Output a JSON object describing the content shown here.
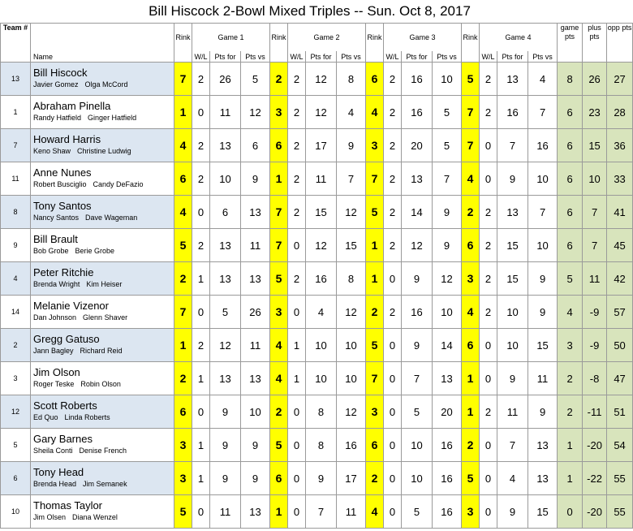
{
  "title": "Bill Hiscock 2-Bowl Mixed Triples   --  Sun.  Oct 8, 2017",
  "headers": {
    "team": "Team #",
    "name": "Name",
    "rink": "Rink",
    "game1": "Game 1",
    "game2": "Game 2",
    "game3": "Game 3",
    "game4": "Game 4",
    "wl": "W/L",
    "pts_for": "Pts for",
    "pts_vs": "Pts vs",
    "game_pts": "game pts",
    "plus_pts": "plus pts",
    "opp_pts": "opp pts"
  },
  "colors": {
    "rink": "#ffff00",
    "summary": "#d8e4bc",
    "alt_row": "#dce6f1"
  },
  "rows": [
    {
      "team": "13",
      "name": "Bill Hiscock",
      "p1": "Javier Gomez",
      "p2": "Olga McCord",
      "g": [
        [
          "7",
          "2",
          "26",
          "5"
        ],
        [
          "2",
          "2",
          "12",
          "8"
        ],
        [
          "6",
          "2",
          "16",
          "10"
        ],
        [
          "5",
          "2",
          "13",
          "4"
        ]
      ],
      "gp": "8",
      "pp": "26",
      "op": "27"
    },
    {
      "team": "1",
      "name": "Abraham Pinella",
      "p1": "Randy Hatfield",
      "p2": "Ginger Hatfield",
      "g": [
        [
          "1",
          "0",
          "11",
          "12"
        ],
        [
          "3",
          "2",
          "12",
          "4"
        ],
        [
          "4",
          "2",
          "16",
          "5"
        ],
        [
          "7",
          "2",
          "16",
          "7"
        ]
      ],
      "gp": "6",
      "pp": "23",
      "op": "28"
    },
    {
      "team": "7",
      "name": "Howard Harris",
      "p1": "Keno Shaw",
      "p2": "Christine Ludwig",
      "g": [
        [
          "4",
          "2",
          "13",
          "6"
        ],
        [
          "6",
          "2",
          "17",
          "9"
        ],
        [
          "3",
          "2",
          "20",
          "5"
        ],
        [
          "7",
          "0",
          "7",
          "16"
        ]
      ],
      "gp": "6",
      "pp": "15",
      "op": "36"
    },
    {
      "team": "11",
      "name": "Anne Nunes",
      "p1": "Robert Busciglio",
      "p2": "Candy DeFazio",
      "g": [
        [
          "6",
          "2",
          "10",
          "9"
        ],
        [
          "1",
          "2",
          "11",
          "7"
        ],
        [
          "7",
          "2",
          "13",
          "7"
        ],
        [
          "4",
          "0",
          "9",
          "10"
        ]
      ],
      "gp": "6",
      "pp": "10",
      "op": "33"
    },
    {
      "team": "8",
      "name": "Tony Santos",
      "p1": "Nancy Santos",
      "p2": "Dave Wageman",
      "g": [
        [
          "4",
          "0",
          "6",
          "13"
        ],
        [
          "7",
          "2",
          "15",
          "12"
        ],
        [
          "5",
          "2",
          "14",
          "9"
        ],
        [
          "2",
          "2",
          "13",
          "7"
        ]
      ],
      "gp": "6",
      "pp": "7",
      "op": "41"
    },
    {
      "team": "9",
      "name": "Bill Brault",
      "p1": "Bob Grobe",
      "p2": "Berie Grobe",
      "g": [
        [
          "5",
          "2",
          "13",
          "11"
        ],
        [
          "7",
          "0",
          "12",
          "15"
        ],
        [
          "1",
          "2",
          "12",
          "9"
        ],
        [
          "6",
          "2",
          "15",
          "10"
        ]
      ],
      "gp": "6",
      "pp": "7",
      "op": "45"
    },
    {
      "team": "4",
      "name": "Peter Ritchie",
      "p1": "Brenda Wright",
      "p2": "Kim Heiser",
      "g": [
        [
          "2",
          "1",
          "13",
          "13"
        ],
        [
          "5",
          "2",
          "16",
          "8"
        ],
        [
          "1",
          "0",
          "9",
          "12"
        ],
        [
          "3",
          "2",
          "15",
          "9"
        ]
      ],
      "gp": "5",
      "pp": "11",
      "op": "42"
    },
    {
      "team": "14",
      "name": "Melanie Vizenor",
      "p1": "Dan Johnson",
      "p2": "Glenn Shaver",
      "g": [
        [
          "7",
          "0",
          "5",
          "26"
        ],
        [
          "3",
          "0",
          "4",
          "12"
        ],
        [
          "2",
          "2",
          "16",
          "10"
        ],
        [
          "4",
          "2",
          "10",
          "9"
        ]
      ],
      "gp": "4",
      "pp": "-9",
      "op": "57"
    },
    {
      "team": "2",
      "name": "Gregg Gatuso",
      "p1": "Jann Bagley",
      "p2": "Richard Reid",
      "g": [
        [
          "1",
          "2",
          "12",
          "11"
        ],
        [
          "4",
          "1",
          "10",
          "10"
        ],
        [
          "5",
          "0",
          "9",
          "14"
        ],
        [
          "6",
          "0",
          "10",
          "15"
        ]
      ],
      "gp": "3",
      "pp": "-9",
      "op": "50"
    },
    {
      "team": "3",
      "name": "Jim Olson",
      "p1": "Roger Teske",
      "p2": "Robin Olson",
      "g": [
        [
          "2",
          "1",
          "13",
          "13"
        ],
        [
          "4",
          "1",
          "10",
          "10"
        ],
        [
          "7",
          "0",
          "7",
          "13"
        ],
        [
          "1",
          "0",
          "9",
          "11"
        ]
      ],
      "gp": "2",
      "pp": "-8",
      "op": "47"
    },
    {
      "team": "12",
      "name": "Scott Roberts",
      "p1": "Ed Quo",
      "p2": "Linda Roberts",
      "g": [
        [
          "6",
          "0",
          "9",
          "10"
        ],
        [
          "2",
          "0",
          "8",
          "12"
        ],
        [
          "3",
          "0",
          "5",
          "20"
        ],
        [
          "1",
          "2",
          "11",
          "9"
        ]
      ],
      "gp": "2",
      "pp": "-11",
      "op": "51"
    },
    {
      "team": "5",
      "name": "Gary Barnes",
      "p1": "Sheila Conti",
      "p2": "Denise French",
      "g": [
        [
          "3",
          "1",
          "9",
          "9"
        ],
        [
          "5",
          "0",
          "8",
          "16"
        ],
        [
          "6",
          "0",
          "10",
          "16"
        ],
        [
          "2",
          "0",
          "7",
          "13"
        ]
      ],
      "gp": "1",
      "pp": "-20",
      "op": "54"
    },
    {
      "team": "6",
      "name": "Tony Head",
      "p1": "Brenda Head",
      "p2": "Jim Semanek",
      "g": [
        [
          "3",
          "1",
          "9",
          "9"
        ],
        [
          "6",
          "0",
          "9",
          "17"
        ],
        [
          "2",
          "0",
          "10",
          "16"
        ],
        [
          "5",
          "0",
          "4",
          "13"
        ]
      ],
      "gp": "1",
      "pp": "-22",
      "op": "55"
    },
    {
      "team": "10",
      "name": "Thomas Taylor",
      "p1": "Jim Olsen",
      "p2": "Diana Wenzel",
      "g": [
        [
          "5",
          "0",
          "11",
          "13"
        ],
        [
          "1",
          "0",
          "7",
          "11"
        ],
        [
          "4",
          "0",
          "5",
          "16"
        ],
        [
          "3",
          "0",
          "9",
          "15"
        ]
      ],
      "gp": "0",
      "pp": "-20",
      "op": "55"
    }
  ]
}
